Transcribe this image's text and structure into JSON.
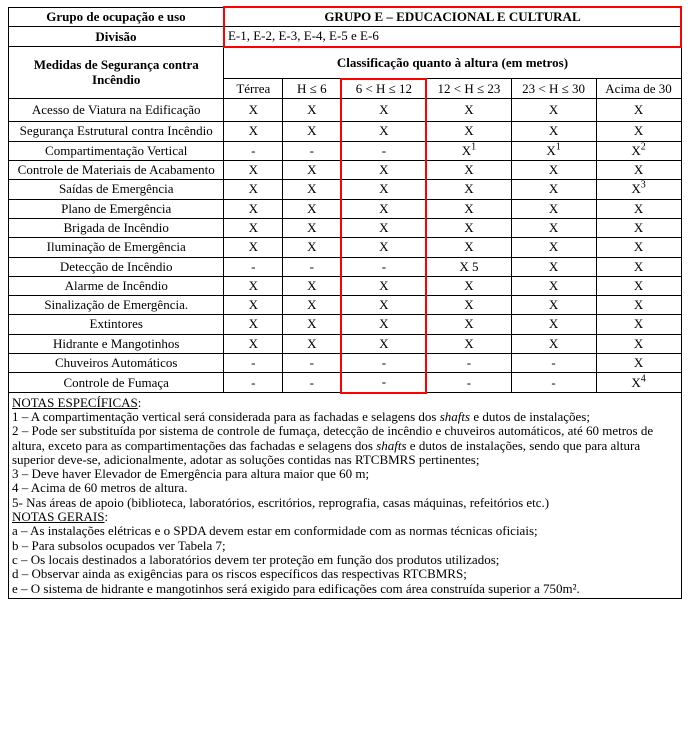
{
  "header": {
    "grupo_label": "Grupo de ocupação e uso",
    "grupo_value": "GRUPO E – EDUCACIONAL E CULTURAL",
    "divisao_label": "Divisão",
    "divisao_value": "E-1, E-2, E-3, E-4, E-5 e E-6",
    "medidas": "Medidas de Segurança contra Incêndio",
    "classific": "Classificação quanto à altura (em metros)"
  },
  "cols": [
    "Térrea",
    "H ≤ 6",
    "6 < H ≤ 12",
    "12 < H ≤ 23",
    "23 < H ≤ 30",
    "Acima de 30"
  ],
  "rows": [
    {
      "label": "Acesso de Viatura na Edificação",
      "v": [
        "X",
        "X",
        "X",
        "X",
        "X",
        "X"
      ]
    },
    {
      "label": "Segurança Estrutural contra Incêndio",
      "v": [
        "X",
        "X",
        "X",
        "X",
        "X",
        "X"
      ]
    },
    {
      "label": "Compartimentação Vertical",
      "v": [
        "-",
        "-",
        "-",
        "X¹",
        "X¹",
        "X²"
      ]
    },
    {
      "label": "Controle de Materiais de Acabamento",
      "v": [
        "X",
        "X",
        "X",
        "X",
        "X",
        "X"
      ]
    },
    {
      "label": "Saídas de Emergência",
      "v": [
        "X",
        "X",
        "X",
        "X",
        "X",
        "X³"
      ]
    },
    {
      "label": "Plano de Emergência",
      "v": [
        "X",
        "X",
        "X",
        "X",
        "X",
        "X"
      ]
    },
    {
      "label": "Brigada de Incêndio",
      "v": [
        "X",
        "X",
        "X",
        "X",
        "X",
        "X"
      ]
    },
    {
      "label": "Iluminação de Emergência",
      "v": [
        "X",
        "X",
        "X",
        "X",
        "X",
        "X"
      ]
    },
    {
      "label": "Detecção de Incêndio",
      "v": [
        "-",
        "-",
        "-",
        "X 5",
        "X",
        "X"
      ]
    },
    {
      "label": "Alarme de Incêndio",
      "v": [
        "X",
        "X",
        "X",
        "X",
        "X",
        "X"
      ]
    },
    {
      "label": "Sinalização de Emergência.",
      "v": [
        "X",
        "X",
        "X",
        "X",
        "X",
        "X"
      ]
    },
    {
      "label": "Extintores",
      "v": [
        "X",
        "X",
        "X",
        "X",
        "X",
        "X"
      ]
    },
    {
      "label": "Hidrante e Mangotinhos",
      "v": [
        "X",
        "X",
        "X",
        "X",
        "X",
        "X"
      ]
    },
    {
      "label": "Chuveiros Automáticos",
      "v": [
        "-",
        "-",
        "-",
        "-",
        "-",
        "X"
      ]
    },
    {
      "label": "Controle de Fumaça",
      "v": [
        "-",
        "-",
        "-",
        "-",
        "-",
        "X⁴"
      ]
    }
  ],
  "notes": {
    "esp_title": "NOTAS ESPECÍFICAS",
    "esp": [
      "1 – A compartimentação vertical será considerada para as fachadas e selagens dos <i>shafts</i> e dutos de instalações;",
      "2 – Pode ser substituída por sistema de controle de fumaça, detecção de incêndio e chuveiros automáticos, até 60 metros de altura, exceto para as compartimentações das fachadas e selagens dos <i>shafts</i> e dutos de instalações, sendo que para altura superior deve-se, adicionalmente, adotar as soluções contidas nas RTCBMRS pertinentes;",
      "3 – Deve haver Elevador de Emergência para altura maior que 60 m;",
      "4 – Acima de 60 metros de altura.",
      "5- Nas áreas de apoio (biblioteca, laboratórios, escritórios, reprografia, casas máquinas, refeitórios etc.)"
    ],
    "ger_title": "NOTAS GERAIS",
    "ger": [
      "a – As instalações elétricas e o SPDA devem estar em conformidade com as normas técnicas oficiais;",
      "b – Para subsolos ocupados ver Tabela 7;",
      "c – Os locais destinados a laboratórios devem ter proteção em função dos produtos utilizados;",
      "d – Observar ainda as exigências para os riscos específicos das respectivas RTCBMRS;",
      "e – O sistema de hidrante e mangotinhos será exigido para edificações com área construída superior a 750m²."
    ]
  },
  "colors": {
    "highlight": "#ff0000",
    "border": "#000000",
    "bg": "#ffffff"
  }
}
